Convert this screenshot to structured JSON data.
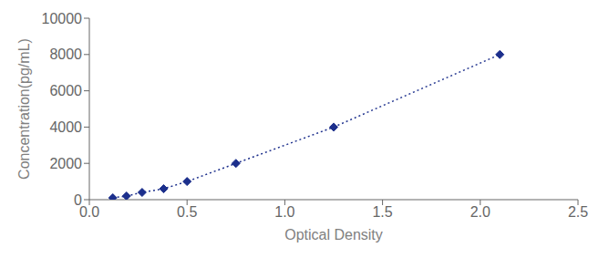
{
  "chart_data": {
    "type": "line",
    "x": [
      0.12,
      0.19,
      0.27,
      0.38,
      0.5,
      0.75,
      1.25,
      2.1
    ],
    "values": [
      100,
      200,
      400,
      600,
      1000,
      2000,
      4000,
      8000
    ],
    "color": "#1c2f8c",
    "marker": "diamond",
    "line_style": "dotted",
    "xlabel": "Optical Density",
    "ylabel": "Concentration(pg/mL)",
    "xlim": [
      0,
      2.5
    ],
    "ylim": [
      0,
      10000
    ],
    "xticks": [
      {
        "value": 0,
        "label": "0.0"
      },
      0.5,
      {
        "value": 1,
        "label": "1.0"
      },
      1.5,
      {
        "value": 2,
        "label": "2.0"
      },
      2.5
    ],
    "yticks": [
      0,
      2000,
      4000,
      6000,
      8000,
      10000
    ],
    "grid": false
  }
}
